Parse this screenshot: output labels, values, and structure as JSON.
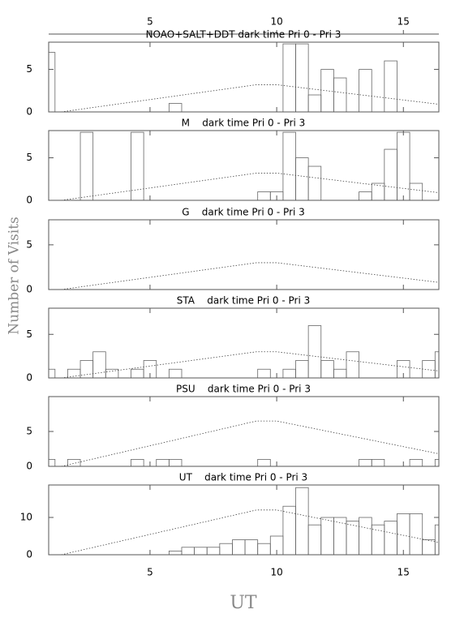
{
  "chart_data": [
    {
      "type": "histogram",
      "title": "NOAO+SALT+DDT dark time Pri 0 - Pri 3",
      "bins": [
        0.75,
        1.25,
        1.75,
        2.25,
        2.75,
        3.25,
        3.75,
        4.25,
        4.75,
        5.25,
        5.75,
        6.25,
        6.75,
        7.25,
        7.75,
        8.25,
        8.75,
        9.25,
        9.75,
        10.25,
        10.75,
        11.25,
        11.75,
        12.25,
        12.75,
        13.25,
        13.75,
        14.25,
        14.75,
        15.25,
        15.75,
        16.25,
        16.75
      ],
      "values": [
        7,
        0,
        0,
        0,
        0,
        0,
        0,
        0,
        0,
        0,
        1,
        0,
        0,
        0,
        0,
        0,
        0,
        0,
        0,
        8,
        8,
        2,
        5,
        4,
        0,
        5,
        0,
        6,
        0,
        0,
        0,
        0
      ],
      "curve_x": [
        1.5,
        9.2,
        10,
        16.4
      ],
      "curve_y": [
        0,
        3.2,
        3.2,
        0.9
      ],
      "xlim": [
        1,
        16.4
      ],
      "xticks": [
        5,
        10,
        15
      ],
      "ylim": [
        0,
        8.2
      ],
      "yticks": [
        0,
        5
      ],
      "y_label": "Number of Visits"
    },
    {
      "type": "histogram",
      "title": "M    dark time Pri 0 - Pri 3",
      "bins": [
        0.75,
        1.25,
        1.75,
        2.25,
        2.75,
        3.25,
        3.75,
        4.25,
        4.75,
        5.25,
        5.75,
        6.25,
        6.75,
        7.25,
        7.75,
        8.25,
        8.75,
        9.25,
        9.75,
        10.25,
        10.75,
        11.25,
        11.75,
        12.25,
        12.75,
        13.25,
        13.75,
        14.25,
        14.75,
        15.25,
        15.75,
        16.25,
        16.75
      ],
      "values": [
        0,
        0,
        0,
        8,
        0,
        0,
        0,
        8,
        0,
        0,
        0,
        0,
        0,
        0,
        0,
        0,
        0,
        1,
        1,
        8,
        5,
        4,
        0,
        0,
        0,
        1,
        2,
        6,
        8,
        2,
        0,
        0
      ],
      "curve_x": [
        1.5,
        9.2,
        10,
        16.4
      ],
      "curve_y": [
        0,
        3.2,
        3.2,
        0.9
      ],
      "xlim": [
        1,
        16.4
      ],
      "xticks": [
        5,
        10,
        15
      ],
      "ylim": [
        0,
        8.2
      ],
      "yticks": [
        0,
        5
      ]
    },
    {
      "type": "histogram",
      "title": "G    dark time Pri 0 - Pri 3",
      "bins": [
        0.75,
        1.25,
        1.75,
        2.25,
        2.75,
        3.25,
        3.75,
        4.25,
        4.75,
        5.25,
        5.75,
        6.25,
        6.75,
        7.25,
        7.75,
        8.25,
        8.75,
        9.25,
        9.75,
        10.25,
        10.75,
        11.25,
        11.75,
        12.25,
        12.75,
        13.25,
        13.75,
        14.25,
        14.75,
        15.25,
        15.75,
        16.25,
        16.75
      ],
      "values": [
        0,
        0,
        0,
        0,
        0,
        0,
        0,
        0,
        0,
        0,
        0,
        0,
        0,
        0,
        0,
        0,
        0,
        0,
        0,
        0,
        0,
        0,
        0,
        0,
        0,
        0,
        0,
        0,
        0,
        0,
        0,
        0
      ],
      "curve_x": [
        1.5,
        9.2,
        10,
        16.4
      ],
      "curve_y": [
        0,
        3,
        3,
        0.8
      ],
      "xlim": [
        1,
        16.4
      ],
      "xticks": [
        5,
        10,
        15
      ],
      "ylim": [
        0,
        7.8
      ],
      "yticks": [
        0,
        5
      ]
    },
    {
      "type": "histogram",
      "title": "STA    dark time Pri 0 - Pri 3",
      "bins": [
        0.75,
        1.25,
        1.75,
        2.25,
        2.75,
        3.25,
        3.75,
        4.25,
        4.75,
        5.25,
        5.75,
        6.25,
        6.75,
        7.25,
        7.75,
        8.25,
        8.75,
        9.25,
        9.75,
        10.25,
        10.75,
        11.25,
        11.75,
        12.25,
        12.75,
        13.25,
        13.75,
        14.25,
        14.75,
        15.25,
        15.75,
        16.25,
        16.75
      ],
      "values": [
        1,
        0,
        1,
        2,
        3,
        1,
        0,
        1,
        2,
        0,
        1,
        0,
        0,
        0,
        0,
        0,
        0,
        1,
        0,
        1,
        2,
        6,
        2,
        1,
        3,
        0,
        0,
        0,
        2,
        0,
        2,
        3
      ],
      "curve_x": [
        1.5,
        9.2,
        10,
        16.4
      ],
      "curve_y": [
        0,
        3,
        3,
        0.8
      ],
      "xlim": [
        1,
        16.4
      ],
      "xticks": [
        5,
        10,
        15
      ],
      "ylim": [
        0,
        8
      ],
      "yticks": [
        0,
        5
      ]
    },
    {
      "type": "histogram",
      "title": "PSU    dark time Pri 0 - Pri 3",
      "bins": [
        0.75,
        1.25,
        1.75,
        2.25,
        2.75,
        3.25,
        3.75,
        4.25,
        4.75,
        5.25,
        5.75,
        6.25,
        6.75,
        7.25,
        7.75,
        8.25,
        8.75,
        9.25,
        9.75,
        10.25,
        10.75,
        11.25,
        11.75,
        12.25,
        12.75,
        13.25,
        13.75,
        14.25,
        14.75,
        15.25,
        15.75,
        16.25,
        16.75
      ],
      "values": [
        1,
        0,
        1,
        0,
        0,
        0,
        0,
        1,
        0,
        1,
        1,
        0,
        0,
        0,
        0,
        0,
        0,
        1,
        0,
        0,
        0,
        0,
        0,
        0,
        0,
        1,
        1,
        0,
        0,
        1,
        0,
        1
      ],
      "curve_x": [
        1.5,
        9.2,
        10,
        16.4
      ],
      "curve_y": [
        0,
        6.5,
        6.5,
        1.8
      ],
      "xlim": [
        1,
        16.4
      ],
      "xticks": [
        5,
        10,
        15
      ],
      "ylim": [
        0,
        10
      ],
      "yticks": [
        0,
        5
      ]
    },
    {
      "type": "histogram",
      "title": "UT    dark time Pri 0 - Pri 3",
      "bins": [
        0.75,
        1.25,
        1.75,
        2.25,
        2.75,
        3.25,
        3.75,
        4.25,
        4.75,
        5.25,
        5.75,
        6.25,
        6.75,
        7.25,
        7.75,
        8.25,
        8.75,
        9.25,
        9.75,
        10.25,
        10.75,
        11.25,
        11.75,
        12.25,
        12.75,
        13.25,
        13.75,
        14.25,
        14.75,
        15.25,
        15.75,
        16.25,
        16.75
      ],
      "values": [
        0,
        0,
        0,
        0,
        0,
        0,
        0,
        0,
        0,
        0,
        1,
        2,
        2,
        2,
        3,
        4,
        4,
        3,
        5,
        13,
        18,
        8,
        10,
        10,
        9,
        10,
        8,
        9,
        11,
        11,
        4,
        8
      ],
      "curve_x": [
        1.5,
        9.2,
        10,
        16.4
      ],
      "curve_y": [
        0,
        12,
        12,
        3.3
      ],
      "xlim": [
        1,
        16.4
      ],
      "xticks": [
        5,
        10,
        15
      ],
      "ylim": [
        0,
        18.7
      ],
      "yticks": [
        0,
        10
      ],
      "x_label": "UT"
    }
  ]
}
